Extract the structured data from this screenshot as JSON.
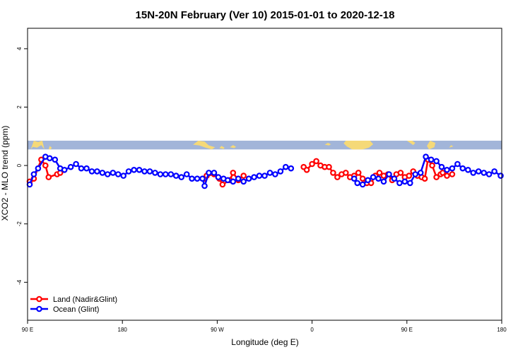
{
  "chart_data": {
    "type": "line",
    "title": "15N-20N February (Ver 10)   2015-01-01 to 2020-12-18",
    "xlabel": "Longitude (deg E)",
    "ylabel": "XCO2 - MLO trend (ppm)",
    "xlim": [
      90,
      540
    ],
    "ylim": [
      -5.3,
      4.7
    ],
    "x_ticks": [
      {
        "value": 90,
        "label": "90 E"
      },
      {
        "value": 180,
        "label": "180"
      },
      {
        "value": 270,
        "label": "90 W"
      },
      {
        "value": 360,
        "label": "0"
      },
      {
        "value": 450,
        "label": "90 E"
      },
      {
        "value": 540,
        "label": "180"
      }
    ],
    "y_ticks": [
      {
        "value": -4,
        "label": "-4"
      },
      {
        "value": -2,
        "label": "-2"
      },
      {
        "value": 0,
        "label": "0"
      },
      {
        "value": 2,
        "label": "2"
      },
      {
        "value": 4,
        "label": "4"
      }
    ],
    "grid": false,
    "legend_position": "bottom-left",
    "map_strip": {
      "y_range": [
        0.55,
        0.85
      ],
      "ocean_color": "#a2b5d9",
      "land_color": "#f5d978"
    },
    "series": [
      {
        "name": "Land (Nadir&Glint)",
        "color": "#ff0000",
        "segments": [
          [
            [
              92,
              -0.55
            ],
            [
              96,
              -0.45
            ],
            [
              103,
              0.2
            ],
            [
              107,
              0.0
            ],
            [
              110,
              -0.4
            ],
            [
              118,
              -0.3
            ],
            [
              121,
              -0.25
            ]
          ],
          [
            [
              258,
              -0.45
            ],
            [
              260,
              -0.35
            ],
            [
              267,
              -0.3
            ],
            [
              272,
              -0.45
            ],
            [
              275,
              -0.65
            ],
            [
              282,
              -0.5
            ],
            [
              285,
              -0.25
            ],
            [
              290,
              -0.5
            ],
            [
              295,
              -0.35
            ]
          ],
          [
            [
              352,
              -0.05
            ],
            [
              355,
              -0.15
            ],
            [
              360,
              0.05
            ],
            [
              364,
              0.15
            ],
            [
              368,
              0.0
            ],
            [
              372,
              -0.05
            ],
            [
              376,
              -0.05
            ],
            [
              380,
              -0.25
            ],
            [
              384,
              -0.4
            ],
            [
              388,
              -0.3
            ],
            [
              392,
              -0.25
            ],
            [
              396,
              -0.4
            ],
            [
              400,
              -0.35
            ],
            [
              404,
              -0.25
            ],
            [
              408,
              -0.45
            ],
            [
              412,
              -0.6
            ],
            [
              416,
              -0.6
            ],
            [
              420,
              -0.35
            ],
            [
              424,
              -0.25
            ],
            [
              428,
              -0.35
            ],
            [
              432,
              -0.3
            ],
            [
              436,
              -0.5
            ],
            [
              440,
              -0.3
            ],
            [
              444,
              -0.25
            ],
            [
              448,
              -0.4
            ],
            [
              452,
              -0.35
            ],
            [
              456,
              -0.2
            ],
            [
              460,
              -0.35
            ],
            [
              464,
              -0.4
            ],
            [
              467,
              -0.45
            ],
            [
              470,
              0.2
            ],
            [
              474,
              0.0
            ],
            [
              478,
              -0.4
            ],
            [
              482,
              -0.3
            ],
            [
              484,
              -0.25
            ],
            [
              488,
              -0.35
            ],
            [
              493,
              -0.3
            ]
          ]
        ]
      },
      {
        "name": "Ocean (Glint)",
        "color": "#0000ff",
        "segments": [
          [
            [
              92,
              -0.65
            ],
            [
              96,
              -0.3
            ],
            [
              100,
              -0.1
            ],
            [
              107,
              0.3
            ],
            [
              111,
              0.25
            ],
            [
              116,
              0.2
            ],
            [
              121,
              -0.1
            ],
            [
              125,
              -0.15
            ],
            [
              131,
              -0.05
            ],
            [
              136,
              0.05
            ],
            [
              141,
              -0.1
            ],
            [
              146,
              -0.1
            ],
            [
              151,
              -0.2
            ],
            [
              156,
              -0.2
            ],
            [
              161,
              -0.25
            ],
            [
              166,
              -0.3
            ],
            [
              171,
              -0.25
            ],
            [
              176,
              -0.3
            ],
            [
              181,
              -0.35
            ],
            [
              186,
              -0.2
            ],
            [
              191,
              -0.15
            ],
            [
              196,
              -0.15
            ],
            [
              201,
              -0.2
            ],
            [
              206,
              -0.2
            ],
            [
              211,
              -0.25
            ],
            [
              216,
              -0.3
            ],
            [
              221,
              -0.3
            ],
            [
              226,
              -0.3
            ],
            [
              231,
              -0.35
            ],
            [
              236,
              -0.4
            ],
            [
              241,
              -0.3
            ],
            [
              246,
              -0.45
            ],
            [
              251,
              -0.45
            ],
            [
              256,
              -0.45
            ],
            [
              258,
              -0.7
            ],
            [
              262,
              -0.25
            ],
            [
              267,
              -0.25
            ],
            [
              271,
              -0.4
            ],
            [
              276,
              -0.45
            ],
            [
              280,
              -0.5
            ],
            [
              285,
              -0.55
            ],
            [
              290,
              -0.45
            ],
            [
              295,
              -0.55
            ],
            [
              300,
              -0.45
            ],
            [
              305,
              -0.4
            ],
            [
              310,
              -0.35
            ],
            [
              315,
              -0.35
            ],
            [
              320,
              -0.25
            ],
            [
              325,
              -0.3
            ],
            [
              330,
              -0.2
            ],
            [
              335,
              -0.05
            ],
            [
              340,
              -0.1
            ]
          ],
          [
            [
              400,
              -0.45
            ],
            [
              403,
              -0.6
            ],
            [
              408,
              -0.65
            ],
            [
              413,
              -0.5
            ],
            [
              418,
              -0.4
            ],
            [
              423,
              -0.45
            ],
            [
              428,
              -0.55
            ],
            [
              433,
              -0.3
            ],
            [
              438,
              -0.45
            ],
            [
              443,
              -0.6
            ],
            [
              448,
              -0.55
            ],
            [
              453,
              -0.6
            ],
            [
              458,
              -0.3
            ],
            [
              463,
              -0.25
            ],
            [
              468,
              0.3
            ],
            [
              473,
              0.2
            ],
            [
              478,
              0.15
            ],
            [
              483,
              -0.05
            ],
            [
              488,
              -0.15
            ],
            [
              493,
              -0.1
            ],
            [
              498,
              0.05
            ],
            [
              503,
              -0.1
            ],
            [
              508,
              -0.15
            ],
            [
              513,
              -0.25
            ],
            [
              518,
              -0.2
            ],
            [
              523,
              -0.25
            ],
            [
              528,
              -0.3
            ],
            [
              533,
              -0.2
            ],
            [
              539,
              -0.35
            ]
          ]
        ]
      }
    ]
  }
}
